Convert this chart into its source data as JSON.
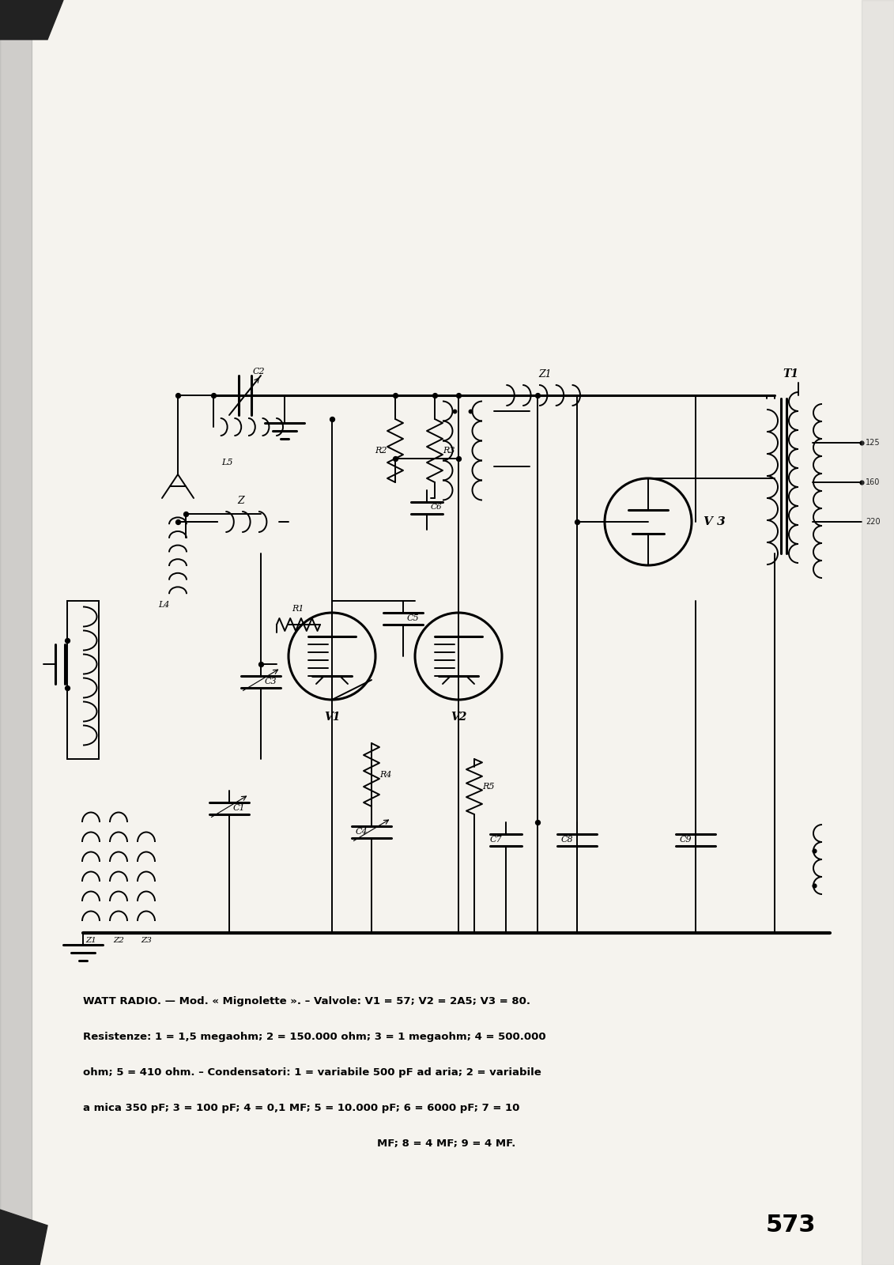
{
  "page_number": "573",
  "caption_line1": "WATT RADIO. — Mod. « Mignolette ». – Valvole: V1 = 57; V2 = 2A5; V3 = 80.",
  "caption_line2": "Resistenze: 1 = 1,5 megaohm; 2 = 150.000 ohm; 3 = 1 megaohm; 4 = 500.000",
  "caption_line3": "ohm; 5 = 410 ohm. – Condensatori: 1 = variabile 500 pF ad aria; 2 = variabile",
  "caption_line4": "a mica 350 pF; 3 = 100 pF; 4 = 0,1 MF; 5 = 10.000 pF; 6 = 6000 pF; 7 = 10",
  "caption_line5": "MF; 8 = 4 MF; 9 = 4 MF.",
  "bg_color": "#ffffff",
  "paper_color": "#f5f3ee"
}
